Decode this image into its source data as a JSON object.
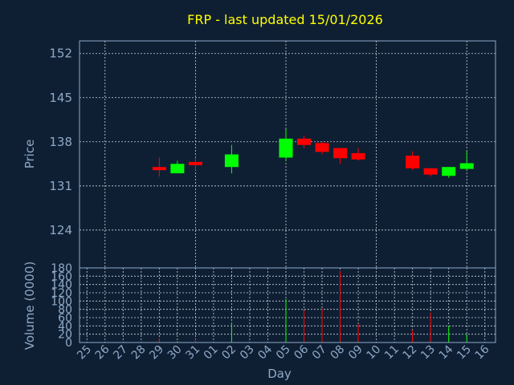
{
  "chart_data": {
    "type": "candlestick",
    "title": "FRP - last updated 15/01/2026",
    "xlabel": "Day",
    "price_panel": {
      "ylabel": "Price",
      "yticks": [
        124,
        131,
        138,
        145,
        152
      ],
      "ylim": [
        118,
        154
      ]
    },
    "volume_panel": {
      "ylabel": "Volume (0000)",
      "yticks": [
        0,
        20,
        40,
        60,
        80,
        100,
        120,
        140,
        160,
        180
      ],
      "ylim": [
        0,
        180
      ]
    },
    "x_ticks": [
      "25",
      "26",
      "27",
      "28",
      "29",
      "30",
      "31",
      "01",
      "02",
      "03",
      "04",
      "05",
      "06",
      "07",
      "08",
      "09",
      "10",
      "11",
      "12",
      "13",
      "14",
      "15",
      "16"
    ],
    "grid": true,
    "colors": {
      "up": "#00ff00",
      "down": "#ff0000",
      "background": "#0f1f33",
      "axis": "#8ea9c7",
      "title": "#ffff00"
    },
    "candles": [
      {
        "day": "29",
        "open": 134.0,
        "high": 135.5,
        "low": 132.5,
        "close": 133.5,
        "volume": 10
      },
      {
        "day": "30",
        "open": 133.0,
        "high": 135.0,
        "low": 133.0,
        "close": 134.5,
        "volume": 3
      },
      {
        "day": "31",
        "open": 134.8,
        "high": 135.5,
        "low": 133.5,
        "close": 134.3,
        "volume": 8
      },
      {
        "day": "02",
        "open": 134.0,
        "high": 137.5,
        "low": 133.0,
        "close": 136.0,
        "volume": 48
      },
      {
        "day": "05",
        "open": 135.5,
        "high": 140.0,
        "low": 135.0,
        "close": 138.5,
        "volume": 105
      },
      {
        "day": "06",
        "open": 138.5,
        "high": 139.0,
        "low": 137.0,
        "close": 137.5,
        "volume": 77
      },
      {
        "day": "07",
        "open": 137.8,
        "high": 138.0,
        "low": 136.0,
        "close": 136.4,
        "volume": 82
      },
      {
        "day": "08",
        "open": 137.0,
        "high": 137.0,
        "low": 134.5,
        "close": 135.4,
        "volume": 172
      },
      {
        "day": "09",
        "open": 136.2,
        "high": 137.0,
        "low": 135.0,
        "close": 135.2,
        "volume": 45
      },
      {
        "day": "12",
        "open": 135.8,
        "high": 136.5,
        "low": 133.5,
        "close": 133.8,
        "volume": 30
      },
      {
        "day": "13",
        "open": 133.8,
        "high": 133.8,
        "low": 132.5,
        "close": 132.8,
        "volume": 72
      },
      {
        "day": "14",
        "open": 132.6,
        "high": 134.0,
        "low": 132.3,
        "close": 134.0,
        "volume": 40
      },
      {
        "day": "15",
        "open": 133.7,
        "high": 136.5,
        "low": 133.5,
        "close": 134.6,
        "volume": 20
      }
    ]
  }
}
